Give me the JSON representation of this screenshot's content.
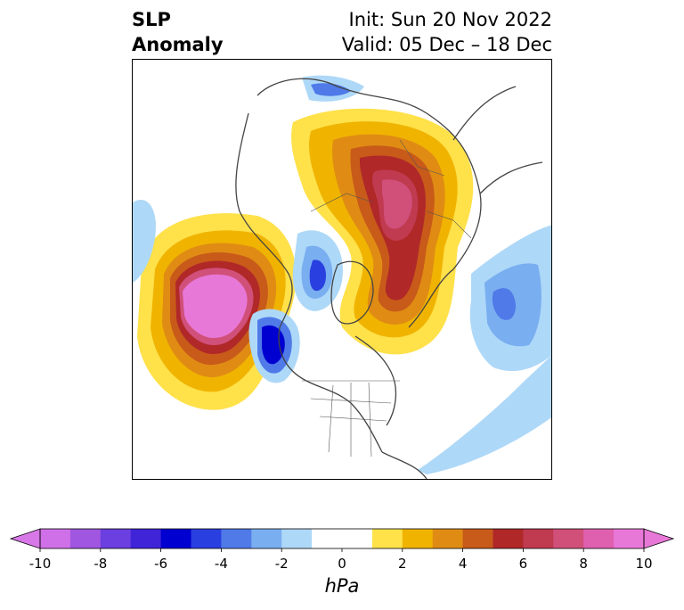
{
  "title": {
    "left_line1": "SLP",
    "left_line2": "Anomaly",
    "right_line1": "Init: Sun 20 Nov 2022",
    "right_line2": "Valid: 05 Dec – 18 Dec"
  },
  "colorbar": {
    "unit": "hPa",
    "tick_labels": [
      "-10",
      "-8",
      "-6",
      "-4",
      "-2",
      "0",
      "2",
      "4",
      "6",
      "8",
      "10"
    ],
    "colors": [
      "#d070e8",
      "#a056e0",
      "#6b3fe0",
      "#3f24d8",
      "#0000d0",
      "#2a3fe0",
      "#4f7ae8",
      "#79aef0",
      "#aed8f8",
      "#ffffff",
      "#ffffff",
      "#ffe14a",
      "#f0b400",
      "#e08c14",
      "#c85a1a",
      "#b02828",
      "#c03a50",
      "#d0507a",
      "#e060b0",
      "#e878d8"
    ],
    "extend_low_color": "#d878e8",
    "extend_high_color": "#e878d8"
  },
  "map": {
    "projection": "north-polar-stereographic",
    "variable": "sea-level-pressure-anomaly",
    "features": [
      "anomaly-contours",
      "coastlines",
      "country-borders",
      "us-state-borders"
    ]
  }
}
